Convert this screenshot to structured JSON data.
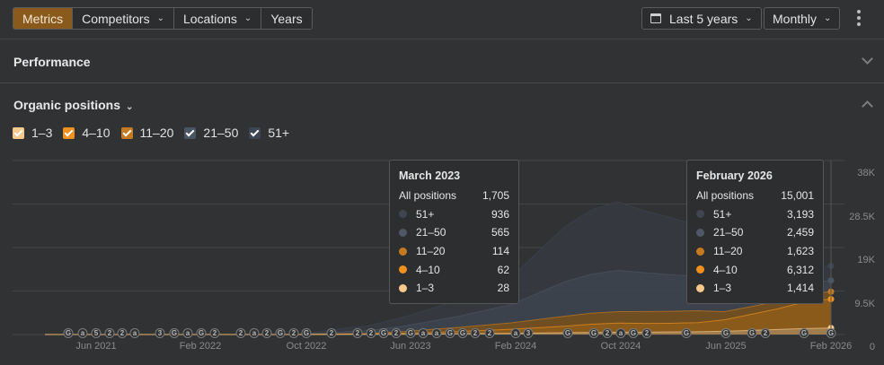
{
  "toolbar": {
    "tabs": [
      {
        "label": "Metrics",
        "active": true,
        "dropdown": false
      },
      {
        "label": "Competitors",
        "active": false,
        "dropdown": true
      },
      {
        "label": "Locations",
        "active": false,
        "dropdown": true
      },
      {
        "label": "Years",
        "active": false,
        "dropdown": false
      }
    ],
    "date_range": {
      "label": "Last 5 years",
      "icon": "calendar-icon"
    },
    "granularity": {
      "label": "Monthly"
    },
    "more_icon": "kebab-menu-icon"
  },
  "sections": {
    "performance": {
      "title": "Performance",
      "collapsed": true
    },
    "organic": {
      "title": "Organic positions",
      "collapsed": false
    }
  },
  "legend": [
    {
      "label": "1–3",
      "color": "#f7c98a",
      "checked": true
    },
    {
      "label": "4–10",
      "color": "#f0901e",
      "checked": true
    },
    {
      "label": "11–20",
      "color": "#c57a1f",
      "checked": true
    },
    {
      "label": "21–50",
      "color": "#4a5563",
      "checked": true
    },
    {
      "label": "51+",
      "color": "#3c4552",
      "checked": true
    }
  ],
  "tooltips": [
    {
      "title": "March 2023",
      "total_label": "All positions",
      "total": "1,705",
      "rows": [
        {
          "label": "51+",
          "value": "936",
          "color": "#3f4650"
        },
        {
          "label": "21–50",
          "value": "565",
          "color": "#4e5866"
        },
        {
          "label": "11–20",
          "value": "114",
          "color": "#c57a1f"
        },
        {
          "label": "4–10",
          "value": "62",
          "color": "#f0901e"
        },
        {
          "label": "1–3",
          "value": "28",
          "color": "#f7c98a"
        }
      ]
    },
    {
      "title": "February 2026",
      "total_label": "All positions",
      "total": "15,001",
      "rows": [
        {
          "label": "51+",
          "value": "3,193",
          "color": "#3f4650"
        },
        {
          "label": "21–50",
          "value": "2,459",
          "color": "#4e5866"
        },
        {
          "label": "11–20",
          "value": "1,623",
          "color": "#c57a1f"
        },
        {
          "label": "4–10",
          "value": "6,312",
          "color": "#f0901e"
        },
        {
          "label": "1–3",
          "value": "1,414",
          "color": "#f7c98a"
        }
      ]
    }
  ],
  "annotations": [
    "G",
    "a",
    "5",
    "2",
    "2",
    "a",
    "3",
    "G",
    "a",
    "G",
    "2",
    "2",
    "a",
    "2",
    "G",
    "2",
    "G",
    "2",
    "2",
    "2",
    "G",
    "2",
    "G",
    "a",
    "a",
    "G",
    "G",
    "2",
    "2",
    "a",
    "3",
    "G",
    "G",
    "2",
    "a",
    "G",
    "2",
    "G",
    "G",
    "G",
    "2",
    "G",
    "G"
  ],
  "chart_data": {
    "type": "area",
    "title": "Organic positions",
    "xlabel": "",
    "ylabel": "",
    "ylim": [
      0,
      38000
    ],
    "y_ticks": [
      "0",
      "9.5K",
      "19K",
      "28.5K",
      "38K"
    ],
    "x_ticks": [
      "Jun 2021",
      "Feb 2022",
      "Oct 2022",
      "Jun 2023",
      "Feb 2024",
      "Oct 2024",
      "Jun 2025",
      "Feb 2026"
    ],
    "stacked": true,
    "grid": true,
    "x": [
      "Mar 2021",
      "Jun 2021",
      "Oct 2021",
      "Feb 2022",
      "Jun 2022",
      "Oct 2022",
      "Feb 2023",
      "Mar 2023",
      "Jun 2023",
      "Oct 2023",
      "Feb 2024",
      "Jun 2024",
      "Aug 2024",
      "Oct 2024",
      "Dec 2024",
      "Feb 2025",
      "Apr 2025",
      "Jun 2025",
      "Aug 2025",
      "Oct 2025",
      "Dec 2025",
      "Feb 2026"
    ],
    "series": [
      {
        "name": "1–3",
        "color": "#f7c98a",
        "values": [
          0,
          0,
          0,
          0,
          0,
          0,
          20,
          28,
          60,
          150,
          250,
          400,
          450,
          500,
          520,
          560,
          600,
          700,
          900,
          1100,
          1300,
          1414
        ]
      },
      {
        "name": "4–10",
        "color": "#f0901e",
        "values": [
          0,
          0,
          0,
          0,
          0,
          0,
          50,
          62,
          200,
          500,
          900,
          1400,
          1800,
          2000,
          1900,
          1900,
          2000,
          2500,
          3500,
          4500,
          5800,
          6312
        ]
      },
      {
        "name": "11–20",
        "color": "#c57a1f",
        "values": [
          0,
          0,
          0,
          0,
          0,
          0,
          100,
          114,
          400,
          900,
          1400,
          2200,
          2400,
          2500,
          2600,
          2600,
          2600,
          1800,
          1700,
          1650,
          1630,
          1623
        ]
      },
      {
        "name": "21–50",
        "color": "#4a5563",
        "values": [
          0,
          0,
          0,
          0,
          0,
          0,
          500,
          565,
          1200,
          2400,
          4000,
          7500,
          8500,
          9000,
          8500,
          8000,
          7500,
          4000,
          3000,
          2700,
          2500,
          2459
        ]
      },
      {
        "name": "51+",
        "color": "#3c4552",
        "values": [
          0,
          0,
          0,
          0,
          0,
          0,
          900,
          936,
          2000,
          3500,
          6000,
          12000,
          14000,
          15000,
          13500,
          12500,
          11000,
          6000,
          4500,
          3700,
          3300,
          3193
        ]
      }
    ]
  }
}
